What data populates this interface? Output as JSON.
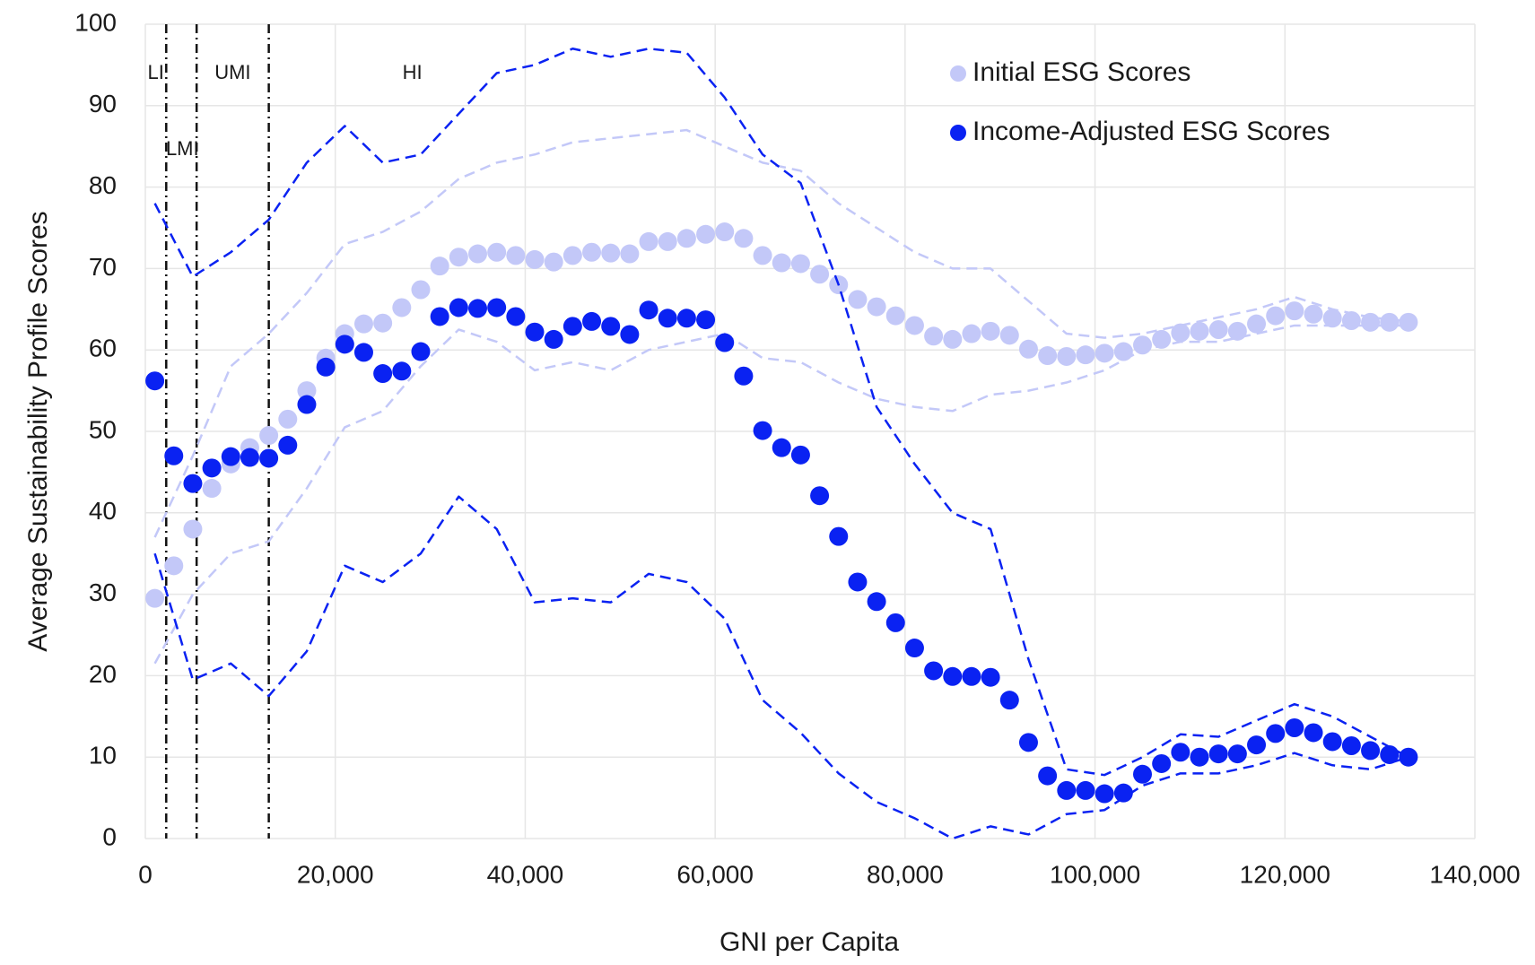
{
  "chart_data": {
    "type": "scatter",
    "x_label": "GNI per Capita",
    "y_label": "Average Sustainability Profile Scores",
    "xlim": [
      0,
      140000
    ],
    "xticks": [
      0,
      {
        "value": 20000,
        "label": "20,000"
      },
      {
        "value": 40000,
        "label": "40,000"
      },
      {
        "value": 60000,
        "label": "60,000"
      },
      {
        "value": 80000,
        "label": "80,000"
      },
      {
        "value": 100000,
        "label": "100,000"
      },
      {
        "value": 120000,
        "label": "120,000"
      },
      {
        "value": 140000,
        "label": "140,000"
      }
    ],
    "ylim": [
      0,
      100
    ],
    "yticks": [
      0,
      10,
      20,
      30,
      40,
      50,
      60,
      70,
      80,
      90,
      100
    ],
    "grid": true,
    "legend": "upper right",
    "income_groups": {
      "thresholds": [
        2200,
        5400,
        13000
      ],
      "labels": [
        "LI",
        "LMI",
        "UMI",
        "HI"
      ]
    },
    "series": [
      {
        "name": "Initial ESG Scores",
        "color": "#c3c8f8",
        "x": [
          1000,
          3000,
          5000,
          7000,
          9000,
          11000,
          13000,
          15000,
          17000,
          19000,
          21000,
          23000,
          25000,
          27000,
          29000,
          31000,
          33000,
          35000,
          37000,
          39000,
          41000,
          43000,
          45000,
          47000,
          49000,
          51000,
          53000,
          55000,
          57000,
          59000,
          61000,
          63000,
          65000,
          67000,
          69000,
          71000,
          73000,
          75000,
          77000,
          79000,
          81000,
          83000,
          85000,
          87000,
          89000,
          91000,
          93000,
          95000,
          97000,
          99000,
          101000,
          103000,
          105000,
          107000,
          109000,
          111000,
          113000,
          115000,
          117000,
          119000,
          121000,
          123000,
          125000,
          127000,
          129000,
          131000,
          133000
        ],
        "values": [
          29.5,
          33.5,
          38,
          43,
          46,
          48,
          49.5,
          51.5,
          55,
          59,
          62,
          63.2,
          63.3,
          65.2,
          67.4,
          70.3,
          71.4,
          71.8,
          72,
          71.6,
          71.1,
          70.8,
          71.6,
          72,
          71.9,
          71.8,
          73.3,
          73.3,
          73.7,
          74.2,
          74.5,
          73.7,
          71.6,
          70.7,
          70.6,
          69.3,
          68,
          66.2,
          65.3,
          64.2,
          63,
          61.7,
          61.3,
          62,
          62.3,
          61.8,
          60.1,
          59.3,
          59.2,
          59.4,
          59.6,
          59.8,
          60.6,
          61.3,
          62.1,
          62.3,
          62.5,
          62.3,
          63.2,
          64.2,
          64.8,
          64.4,
          63.9,
          63.6,
          63.4,
          63.4,
          63.4
        ],
        "band": {
          "x": [
            1000,
            5000,
            9000,
            13000,
            17000,
            21000,
            25000,
            29000,
            33000,
            37000,
            41000,
            45000,
            49000,
            53000,
            57000,
            61000,
            65000,
            69000,
            73000,
            77000,
            81000,
            85000,
            89000,
            93000,
            97000,
            101000,
            105000,
            109000,
            113000,
            117000,
            121000,
            125000,
            129000,
            133000
          ],
          "upper": [
            37,
            47,
            58,
            62,
            67,
            73,
            74.5,
            77,
            81,
            83,
            84,
            85.5,
            86,
            86.5,
            87,
            85,
            83,
            82,
            78,
            75,
            72,
            70,
            70,
            66,
            62,
            61.5,
            62,
            63,
            64,
            65,
            66.5,
            65,
            64,
            63.5
          ],
          "lower": [
            21.5,
            30,
            35,
            36.5,
            43,
            50.5,
            52.5,
            58,
            62.5,
            61,
            57.5,
            58.5,
            57.5,
            60,
            61,
            62,
            59,
            58.5,
            56,
            54,
            53,
            52.5,
            54.5,
            55,
            56,
            57.5,
            60,
            61,
            61,
            62,
            63,
            63,
            63,
            63
          ]
        }
      },
      {
        "name": "Income-Adjusted ESG Scores",
        "color": "#0a22f2",
        "x": [
          1000,
          3000,
          5000,
          7000,
          9000,
          11000,
          13000,
          15000,
          17000,
          19000,
          21000,
          23000,
          25000,
          27000,
          29000,
          31000,
          33000,
          35000,
          37000,
          39000,
          41000,
          43000,
          45000,
          47000,
          49000,
          51000,
          53000,
          55000,
          57000,
          59000,
          61000,
          63000,
          65000,
          67000,
          69000,
          71000,
          73000,
          75000,
          77000,
          79000,
          81000,
          83000,
          85000,
          87000,
          89000,
          91000,
          93000,
          95000,
          97000,
          99000,
          101000,
          103000,
          105000,
          107000,
          109000,
          111000,
          113000,
          115000,
          117000,
          119000,
          121000,
          123000,
          125000,
          127000,
          129000,
          131000,
          133000
        ],
        "values": [
          56.2,
          47,
          43.6,
          45.5,
          46.9,
          46.8,
          46.7,
          48.3,
          53.3,
          57.9,
          60.7,
          59.7,
          57.1,
          57.4,
          59.8,
          64.1,
          65.2,
          65.1,
          65.2,
          64.1,
          62.2,
          61.3,
          62.9,
          63.5,
          62.9,
          61.9,
          64.9,
          63.9,
          63.9,
          63.7,
          60.9,
          56.8,
          50.1,
          48,
          47.1,
          42.1,
          37.1,
          31.5,
          29.1,
          26.5,
          23.4,
          20.6,
          19.9,
          19.9,
          19.8,
          17,
          11.8,
          7.7,
          5.9,
          5.9,
          5.5,
          5.6,
          7.9,
          9.2,
          10.6,
          10,
          10.4,
          10.4,
          11.5,
          12.9,
          13.6,
          13,
          11.9,
          11.4,
          10.8,
          10.3,
          10
        ],
        "band": {
          "x": [
            1000,
            5000,
            9000,
            13000,
            17000,
            21000,
            25000,
            29000,
            33000,
            37000,
            41000,
            45000,
            49000,
            53000,
            57000,
            61000,
            65000,
            69000,
            73000,
            77000,
            81000,
            85000,
            89000,
            93000,
            97000,
            101000,
            105000,
            109000,
            113000,
            117000,
            121000,
            125000,
            129000,
            133000
          ],
          "upper": [
            78,
            69,
            72,
            76,
            83,
            87.5,
            83,
            84,
            89,
            94,
            95,
            97,
            96,
            97,
            96.5,
            91,
            84,
            80.5,
            68,
            53,
            46,
            40,
            38,
            22,
            8.5,
            7.8,
            10,
            12.8,
            12.5,
            14.5,
            16.5,
            15,
            12.5,
            10
          ],
          "lower": [
            35,
            19.5,
            21.5,
            17.5,
            23,
            33.5,
            31.5,
            35,
            42,
            38,
            29,
            29.5,
            29,
            32.5,
            31.5,
            27,
            17,
            13,
            8,
            4.5,
            2.5,
            0,
            1.5,
            0.5,
            3,
            3.5,
            6.5,
            8,
            8,
            9,
            10.5,
            9,
            8.5,
            10
          ]
        }
      }
    ]
  }
}
